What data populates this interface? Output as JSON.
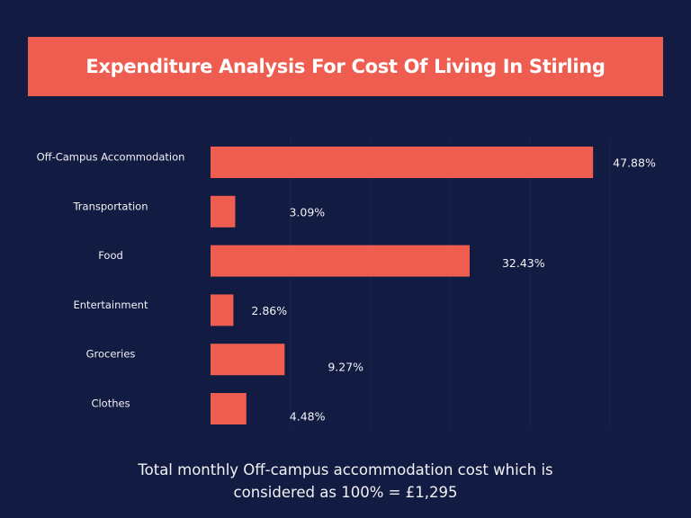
{
  "chart_data": {
    "type": "bar",
    "orientation": "horizontal",
    "title": "Expenditure Analysis For Cost Of Living In Stirling",
    "categories": [
      "Off-Campus Accommodation",
      "Transportation",
      "Food",
      "Entertainment",
      "Groceries",
      "Clothes"
    ],
    "values": [
      47.88,
      3.09,
      32.43,
      2.86,
      9.27,
      4.48
    ],
    "data_labels": [
      "47.88%",
      "3.09%",
      "32.43%",
      "2.86%",
      "9.27%",
      "4.48%"
    ],
    "xlim": [
      0,
      50
    ],
    "grid": true,
    "xlabel": "",
    "ylabel": "",
    "colors": {
      "bar": "#ee5d50",
      "background": "#121b42",
      "grid": "#1c2550",
      "text": "#f2f2f5"
    }
  },
  "footnote": {
    "line1": "Total monthly Off-campus accommodation cost which is",
    "line2": "considered as 100% = £1,295"
  }
}
